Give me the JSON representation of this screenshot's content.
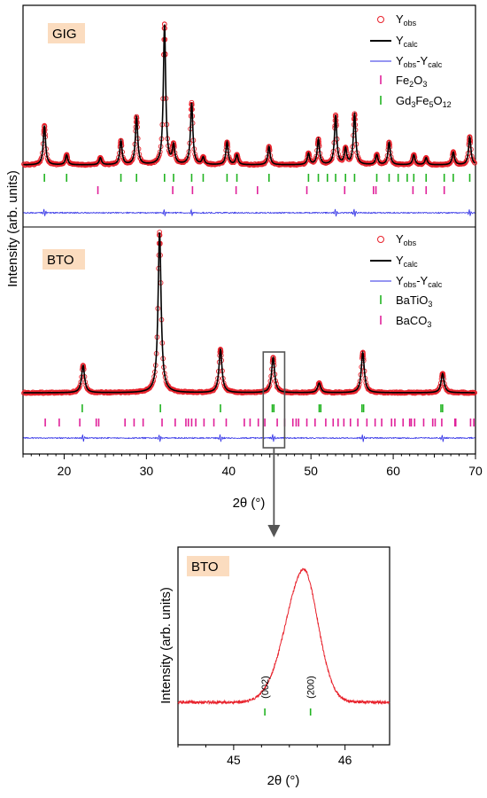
{
  "chart_data": [
    {
      "type": "line",
      "panel": "main",
      "xlabel": "2θ (°)",
      "ylabel": "Intensity (arb. units)",
      "xlim": [
        15,
        70
      ],
      "x_ticks": [
        20,
        30,
        40,
        50,
        60,
        70
      ],
      "x_tick_labels": [
        "20",
        "30",
        "40",
        "50",
        "60",
        "70"
      ],
      "colors": {
        "observed": "#e8202a",
        "calculated": "#000000",
        "difference": "#2c2ce6",
        "green_ticks": "#22b422",
        "magenta_ticks": "#e0219a",
        "label_box": "#fbdcbf"
      },
      "subplots": [
        {
          "sample": "GIG",
          "legend": {
            "position": "top-right",
            "entries": [
              {
                "symbol": "open-circle",
                "color": "#e8202a",
                "base": "Y",
                "sub": "obs"
              },
              {
                "symbol": "line",
                "color": "#000000",
                "base": "Y",
                "sub": "calc"
              },
              {
                "symbol": "thin-line",
                "color": "#2c2ce6",
                "base": "Y",
                "sub": "obs",
                "mid": "-Y",
                "sub2": "calc"
              },
              {
                "symbol": "tick",
                "color": "#e0219a",
                "base": "Fe",
                "sub": "2",
                "mid": "O",
                "sub2": "3"
              },
              {
                "symbol": "tick",
                "color": "#22b422",
                "base": "Gd",
                "sub": "3",
                "mid": "Fe",
                "sub2": "5",
                "mid2": "O",
                "sub3": "12"
              }
            ]
          },
          "peaks": [
            {
              "x": 17.6,
              "h": 0.28
            },
            {
              "x": 20.3,
              "h": 0.07
            },
            {
              "x": 24.4,
              "h": 0.05
            },
            {
              "x": 26.9,
              "h": 0.17
            },
            {
              "x": 28.8,
              "h": 0.34
            },
            {
              "x": 32.2,
              "h": 1.0
            },
            {
              "x": 33.3,
              "h": 0.13
            },
            {
              "x": 35.5,
              "h": 0.44
            },
            {
              "x": 36.9,
              "h": 0.05
            },
            {
              "x": 39.8,
              "h": 0.16
            },
            {
              "x": 41.0,
              "h": 0.07
            },
            {
              "x": 44.9,
              "h": 0.13
            },
            {
              "x": 49.7,
              "h": 0.08
            },
            {
              "x": 50.9,
              "h": 0.18
            },
            {
              "x": 53.0,
              "h": 0.35
            },
            {
              "x": 54.2,
              "h": 0.11
            },
            {
              "x": 55.3,
              "h": 0.36
            },
            {
              "x": 58.0,
              "h": 0.07
            },
            {
              "x": 59.5,
              "h": 0.16
            },
            {
              "x": 62.5,
              "h": 0.07
            },
            {
              "x": 64.0,
              "h": 0.05
            },
            {
              "x": 67.3,
              "h": 0.09
            },
            {
              "x": 69.3,
              "h": 0.2
            }
          ],
          "width": 0.17,
          "diff_spikes": [
            17.6,
            32.2,
            35.5,
            53.0,
            55.3,
            69.3
          ],
          "tick_rows": [
            {
              "phase": "Gd3Fe5O12",
              "color": "#22b422",
              "positions": [
                17.6,
                20.3,
                26.9,
                28.8,
                32.2,
                33.3,
                35.5,
                36.9,
                39.8,
                41.0,
                44.9,
                49.7,
                50.9,
                52.0,
                53.0,
                54.2,
                55.3,
                58.0,
                59.5,
                60.6,
                61.7,
                62.5,
                64.0,
                66.2,
                67.3,
                69.3
              ]
            },
            {
              "phase": "Fe2O3",
              "color": "#e0219a",
              "positions": [
                24.1,
                33.2,
                35.6,
                40.9,
                43.5,
                49.5,
                54.1,
                57.6,
                57.9,
                62.4,
                64.0,
                66.2
              ]
            }
          ]
        },
        {
          "sample": "BTO",
          "legend": {
            "position": "top-right",
            "entries": [
              {
                "symbol": "open-circle",
                "color": "#e8202a",
                "base": "Y",
                "sub": "obs"
              },
              {
                "symbol": "line",
                "color": "#000000",
                "base": "Y",
                "sub": "calc"
              },
              {
                "symbol": "thin-line",
                "color": "#2c2ce6",
                "base": "Y",
                "sub": "obs",
                "mid": "-Y",
                "sub2": "calc"
              },
              {
                "symbol": "tick",
                "color": "#22b422",
                "base": "BaTiO",
                "sub": "3"
              },
              {
                "symbol": "tick",
                "color": "#e0219a",
                "base": "BaCO",
                "sub": "3"
              }
            ]
          },
          "peaks": [
            {
              "x": 22.3,
              "h": 0.17
            },
            {
              "x": 31.6,
              "h": 1.0
            },
            {
              "x": 39.0,
              "h": 0.27
            },
            {
              "x": 45.4,
              "h": 0.22
            },
            {
              "x": 51.0,
              "h": 0.06
            },
            {
              "x": 56.3,
              "h": 0.25
            },
            {
              "x": 66.0,
              "h": 0.12
            }
          ],
          "width": 0.22,
          "diff_spikes": [
            22.3,
            31.6,
            39.0,
            45.4,
            56.3,
            66.0
          ],
          "tick_rows": [
            {
              "phase": "BaTiO3",
              "color": "#22b422",
              "positions": [
                22.2,
                31.7,
                39.0,
                45.3,
                45.5,
                51.0,
                51.2,
                56.2,
                56.4,
                65.8,
                66.0
              ]
            },
            {
              "phase": "BaCO3",
              "color": "#e0219a",
              "positions": [
                17.7,
                19.4,
                21.9,
                23.9,
                24.2,
                27.4,
                28.5,
                29.6,
                31.9,
                33.5,
                34.8,
                35.1,
                35.5,
                36.0,
                37.0,
                38.2,
                39.7,
                41.9,
                42.6,
                43.6,
                44.4,
                45.9,
                46.8,
                47.8,
                48.2,
                48.5,
                49.5,
                50.5,
                51.8,
                52.7,
                53.3,
                54.0,
                54.8,
                55.7,
                56.8,
                57.8,
                58.6,
                59.8,
                60.2,
                61.2,
                62.0,
                62.2,
                62.6,
                63.7,
                64.8,
                65.1,
                65.9,
                67.5,
                67.6,
                69.4,
                69.8
              ]
            }
          ]
        }
      ],
      "zoom_box": {
        "x": [
          44.2,
          46.8
        ]
      }
    },
    {
      "type": "line",
      "panel": "inset",
      "sample": "BTO",
      "xlabel": "2θ (°)",
      "ylabel": "Intensity (arb. units)",
      "xlim": [
        44.5,
        46.4
      ],
      "x_ticks": [
        45,
        46
      ],
      "x_tick_labels": [
        "45",
        "46"
      ],
      "color": "#e8202a",
      "peak": {
        "x": 45.63,
        "h": 1.0,
        "left_width": 0.23,
        "right_width": 0.18
      },
      "reflections": [
        {
          "label": "(002)",
          "x": 45.28
        },
        {
          "label": "(200)",
          "x": 45.69
        }
      ]
    }
  ]
}
